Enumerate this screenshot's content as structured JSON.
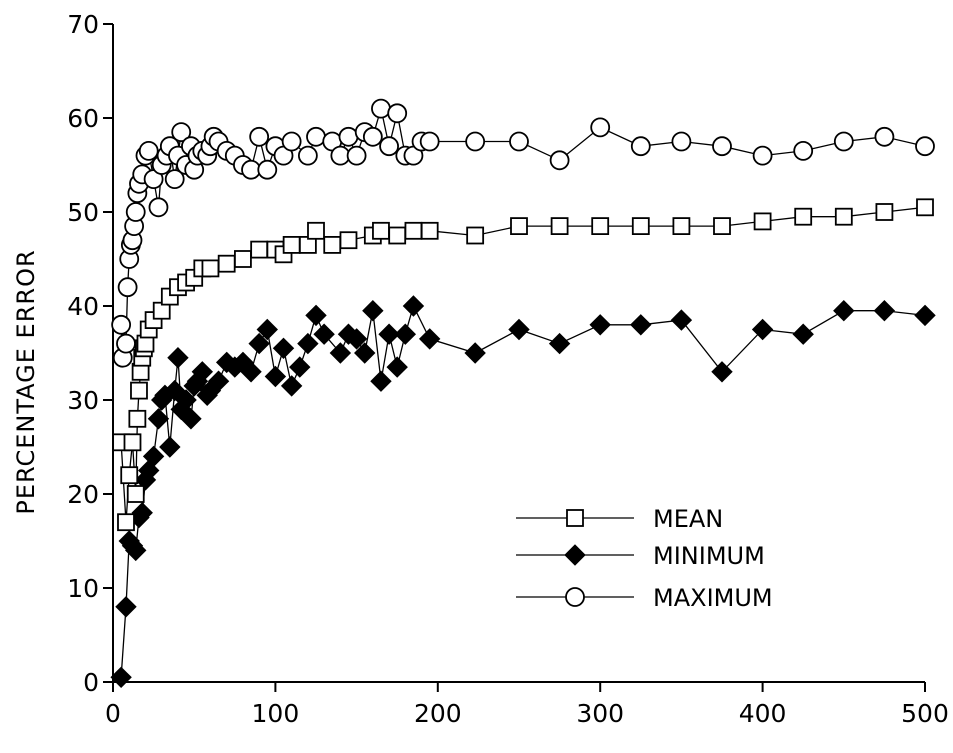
{
  "chart_data": {
    "type": "scatter",
    "title": "",
    "xlabel": "",
    "ylabel": "PERCENTAGE ERROR",
    "xlim": [
      0,
      500
    ],
    "ylim": [
      0,
      70
    ],
    "xticks": [
      0,
      100,
      200,
      300,
      400,
      500
    ],
    "yticks": [
      0,
      10,
      20,
      30,
      40,
      50,
      60,
      70
    ],
    "grid": false,
    "legend_position": "bottom-right",
    "series": [
      {
        "name": "MEAN",
        "marker": "open-square",
        "x": [
          5,
          8,
          10,
          12,
          14,
          15,
          16,
          17,
          18,
          19,
          20,
          22,
          25,
          30,
          35,
          40,
          45,
          50,
          55,
          60,
          70,
          80,
          90,
          100,
          105,
          110,
          120,
          125,
          135,
          145,
          160,
          165,
          175,
          185,
          195,
          223,
          250,
          275,
          300,
          325,
          350,
          375,
          400,
          425,
          450,
          475,
          500
        ],
        "y": [
          25.5,
          17,
          22,
          25.5,
          20,
          28,
          31,
          33,
          34.5,
          35.5,
          36,
          37.5,
          38.5,
          39.5,
          41,
          42,
          42.5,
          43,
          44,
          44,
          44.5,
          45,
          46,
          46,
          45.5,
          46.5,
          46.5,
          48,
          46.5,
          47,
          47.5,
          48,
          47.5,
          48,
          48,
          47.5,
          48.5,
          48.5,
          48.5,
          48.5,
          48.5,
          48.5,
          49,
          49.5,
          49.5,
          50,
          50.5
        ]
      },
      {
        "name": "MINIMUM",
        "marker": "filled-diamond",
        "x": [
          5,
          8,
          10,
          12,
          14,
          16,
          18,
          20,
          22,
          25,
          28,
          30,
          32,
          35,
          38,
          40,
          42,
          45,
          48,
          50,
          52,
          55,
          58,
          60,
          65,
          70,
          75,
          80,
          85,
          90,
          95,
          100,
          105,
          110,
          115,
          120,
          125,
          130,
          140,
          145,
          150,
          155,
          160,
          165,
          170,
          175,
          180,
          185,
          195,
          223,
          250,
          275,
          300,
          325,
          350,
          375,
          400,
          425,
          450,
          475,
          500
        ],
        "y": [
          0.5,
          8,
          15,
          14.5,
          14,
          17.5,
          18,
          21.5,
          22.5,
          24,
          28,
          30,
          30.5,
          25,
          31,
          34.5,
          29,
          30,
          28,
          31.5,
          32,
          33,
          30.5,
          31,
          32,
          34,
          33.5,
          34,
          33,
          36,
          37.5,
          32.5,
          35.5,
          31.5,
          33.5,
          36,
          39,
          37,
          35,
          37,
          36.5,
          35,
          39.5,
          32,
          37,
          33.5,
          37,
          40,
          36.5,
          35,
          37.5,
          36,
          38,
          38,
          38.5,
          33,
          37.5,
          37,
          39.5,
          39.5,
          39
        ]
      },
      {
        "name": "MAXIMUM",
        "marker": "open-circle",
        "x": [
          5,
          6,
          8,
          9,
          10,
          11,
          12,
          13,
          14,
          15,
          16,
          18,
          20,
          22,
          25,
          28,
          30,
          33,
          35,
          38,
          40,
          42,
          45,
          48,
          50,
          52,
          55,
          58,
          60,
          62,
          65,
          70,
          75,
          80,
          85,
          90,
          95,
          100,
          105,
          110,
          120,
          125,
          135,
          140,
          145,
          150,
          155,
          160,
          165,
          170,
          175,
          180,
          185,
          190,
          195,
          223,
          250,
          275,
          300,
          325,
          350,
          375,
          400,
          425,
          450,
          475,
          500
        ],
        "y": [
          38,
          34.5,
          36,
          42,
          45,
          46.5,
          47,
          48.5,
          50,
          52,
          53,
          54,
          56,
          56.5,
          53.5,
          50.5,
          55,
          56,
          57,
          53.5,
          56,
          58.5,
          55,
          57,
          54.5,
          56,
          56.5,
          56,
          57,
          58,
          57.5,
          56.5,
          56,
          55,
          54.5,
          58,
          54.5,
          57,
          56,
          57.5,
          56,
          58,
          57.5,
          56,
          58,
          56,
          58.5,
          58,
          61,
          57,
          60.5,
          56,
          56,
          57.5,
          57.5,
          57.5,
          57.5,
          55.5,
          59,
          57,
          57.5,
          57,
          56,
          56.5,
          57.5,
          58,
          57
        ]
      }
    ]
  }
}
